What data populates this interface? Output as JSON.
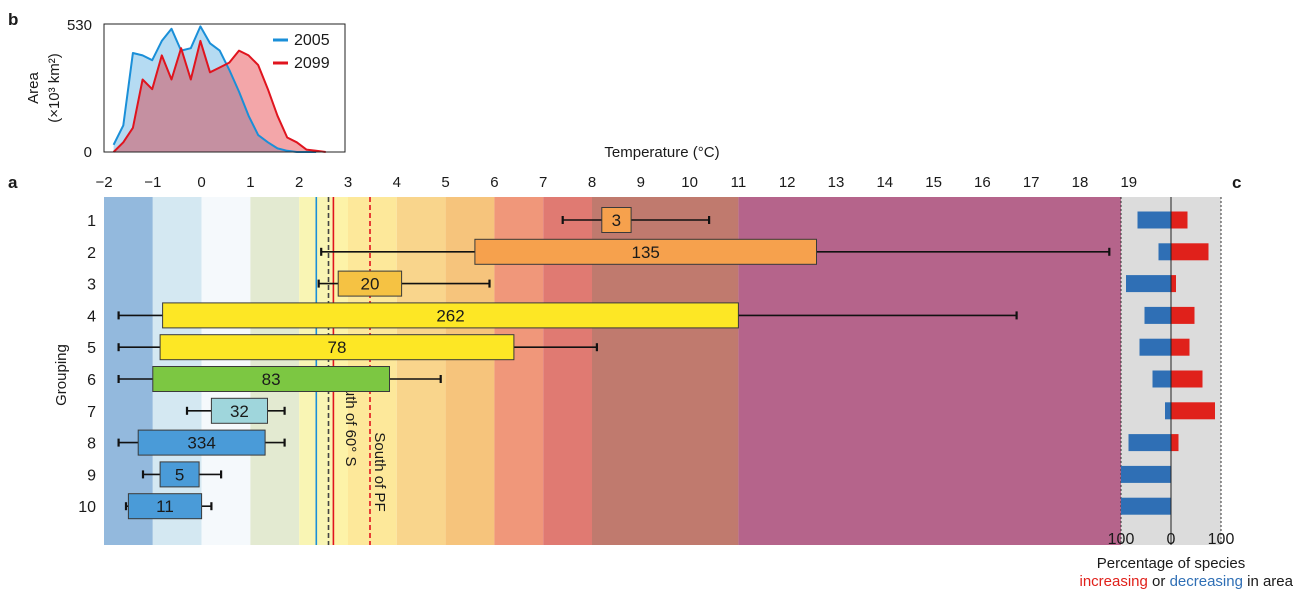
{
  "panel_labels": {
    "a": "a",
    "b": "b",
    "c": "c"
  },
  "colors": {
    "blue_2005": "#1a8fd8",
    "red_2099": "#e0141e",
    "increasing": "#e0211b",
    "decreasing": "#2f6fb5",
    "panel_c_bg": "#dcdcdc"
  },
  "chart_data": [
    {
      "panel": "b",
      "type": "area",
      "ylabel_line1": "Area",
      "ylabel_line2": "(×10³ km²)",
      "ylim": [
        0,
        530
      ],
      "xlim": [
        -2,
        3
      ],
      "y_ticks": [
        "530",
        "0"
      ],
      "series": [
        {
          "name": "2005",
          "color": "#1a8fd8",
          "x": [
            -1.8,
            -1.6,
            -1.4,
            -1.2,
            -1.0,
            -0.8,
            -0.6,
            -0.4,
            -0.2,
            0.0,
            0.2,
            0.4,
            0.6,
            0.8,
            1.0,
            1.2,
            1.4,
            1.6,
            1.8,
            2.0,
            2.2,
            2.4
          ],
          "values": [
            30,
            110,
            410,
            400,
            380,
            460,
            510,
            420,
            430,
            520,
            450,
            420,
            340,
            250,
            150,
            70,
            40,
            15,
            5,
            0,
            0,
            0
          ]
        },
        {
          "name": "2099",
          "color": "#e0141e",
          "x": [
            -1.8,
            -1.6,
            -1.4,
            -1.2,
            -1.0,
            -0.8,
            -0.6,
            -0.4,
            -0.2,
            0.0,
            0.2,
            0.4,
            0.6,
            0.8,
            1.0,
            1.2,
            1.4,
            1.6,
            1.8,
            2.0,
            2.2,
            2.4,
            2.6
          ],
          "values": [
            0,
            40,
            100,
            300,
            260,
            400,
            300,
            430,
            300,
            460,
            330,
            350,
            370,
            420,
            400,
            360,
            260,
            150,
            60,
            40,
            10,
            5,
            0
          ]
        }
      ]
    },
    {
      "panel": "a",
      "type": "boxplot",
      "xlabel": "Temperature (°C)",
      "ylabel": "Grouping",
      "xlim": [
        -2,
        19
      ],
      "x_ticks": [
        "−2",
        "−1",
        "0",
        "1",
        "2",
        "3",
        "4",
        "5",
        "6",
        "7",
        "8",
        "9",
        "10",
        "11",
        "12",
        "13",
        "14",
        "15",
        "16",
        "17",
        "18",
        "19"
      ],
      "band_edges": [
        -2,
        -1,
        0,
        1,
        2,
        3,
        4,
        5,
        6,
        7,
        8,
        11,
        19
      ],
      "band_colors": [
        "#93b9dd",
        "#d4e8f2",
        "#f5f9fc",
        "#e3ead1",
        "#f9f5b4",
        "#fdf3a8",
        "#fde89a",
        "#f9d58c",
        "#f6c47c",
        "#f0977a",
        "#e07a72",
        "#c07a6e",
        "#b5648b"
      ],
      "bands": [
        [
          -2,
          -1
        ],
        [
          -1,
          0
        ],
        [
          0,
          1
        ],
        [
          1,
          2
        ],
        [
          2,
          2.7
        ],
        [
          2.7,
          3
        ],
        [
          3,
          4
        ],
        [
          4,
          5
        ],
        [
          5,
          6
        ],
        [
          6,
          7
        ],
        [
          7,
          8
        ],
        [
          8,
          11
        ],
        [
          11,
          18.9
        ]
      ],
      "vlines": [
        {
          "x": 2.35,
          "color": "#1a8fd8",
          "dashed": false
        },
        {
          "x": 2.7,
          "color": "#e0141e",
          "dashed": false
        },
        {
          "x": 2.6,
          "color": "#444444",
          "dashed": true
        },
        {
          "x": 3.45,
          "color": "#e0141e",
          "dashed": true
        }
      ],
      "annotations": [
        "South of 60° S",
        "South of PF"
      ],
      "groups": [
        {
          "label": "1",
          "count": "3",
          "min": 7.4,
          "q1": 8.2,
          "q3": 8.8,
          "max": 10.4,
          "color": "#f6a14d"
        },
        {
          "label": "2",
          "count": "135",
          "min": 2.45,
          "q1": 5.6,
          "q3": 12.6,
          "max": 18.6,
          "color": "#f6a14d"
        },
        {
          "label": "3",
          "count": "20",
          "min": 2.4,
          "q1": 2.8,
          "q3": 4.1,
          "max": 5.9,
          "color": "#f5c243"
        },
        {
          "label": "4",
          "count": "262",
          "min": -1.7,
          "q1": -0.8,
          "q3": 11.0,
          "max": 16.7,
          "color": "#fde725"
        },
        {
          "label": "5",
          "count": "78",
          "min": -1.7,
          "q1": -0.85,
          "q3": 6.4,
          "max": 8.1,
          "color": "#fde725"
        },
        {
          "label": "6",
          "count": "83",
          "min": -1.7,
          "q1": -1.0,
          "q3": 3.85,
          "max": 4.9,
          "color": "#7cc742"
        },
        {
          "label": "7",
          "count": "32",
          "min": -0.3,
          "q1": 0.2,
          "q3": 1.35,
          "max": 1.7,
          "color": "#9fd6dc"
        },
        {
          "label": "8",
          "count": "334",
          "min": -1.7,
          "q1": -1.3,
          "q3": 1.3,
          "max": 1.7,
          "color": "#4a9bd8"
        },
        {
          "label": "9",
          "count": "5",
          "min": -1.2,
          "q1": -0.85,
          "q3": -0.05,
          "max": 0.4,
          "color": "#4a9bd8"
        },
        {
          "label": "10",
          "count": "11",
          "min": -1.55,
          "q1": -1.5,
          "q3": 0.0,
          "max": 0.2,
          "color": "#4a9bd8"
        }
      ]
    },
    {
      "panel": "c",
      "type": "bar",
      "orientation": "horizontal",
      "xlabel": "Percentage of species",
      "xlabel_line2_part1": "increasing",
      "xlabel_line2_part2": " or ",
      "xlabel_line2_part3": "decreasing",
      "xlabel_line2_part4": " in area",
      "x_ticks": [
        "100",
        "0",
        "100"
      ],
      "xlim": [
        -100,
        100
      ],
      "categories": [
        "1",
        "2",
        "3",
        "4",
        "5",
        "6",
        "7",
        "8",
        "9",
        "10"
      ],
      "series": [
        {
          "name": "increasing",
          "values": [
            33,
            75,
            10,
            47,
            37,
            63,
            88,
            15,
            0,
            0
          ],
          "color": "#e0211b"
        },
        {
          "name": "decreasing",
          "values": [
            67,
            25,
            90,
            53,
            63,
            37,
            12,
            85,
            100,
            100
          ],
          "color": "#2f6fb5"
        }
      ]
    }
  ]
}
